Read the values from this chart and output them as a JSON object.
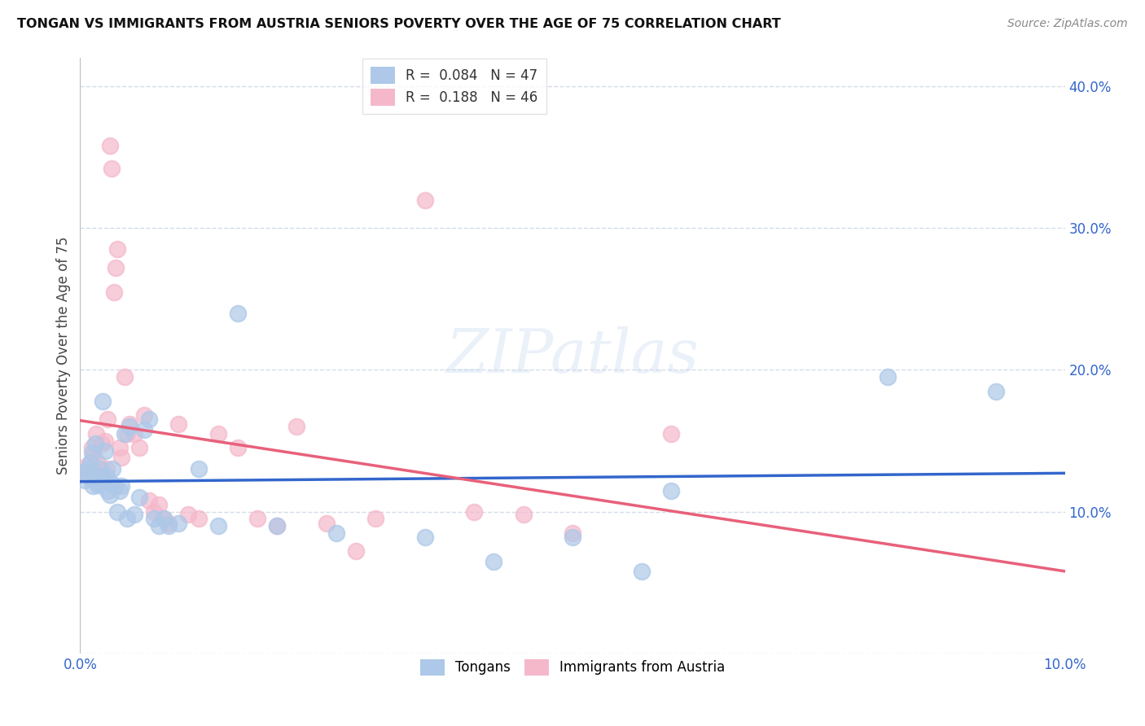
{
  "title": "TONGAN VS IMMIGRANTS FROM AUSTRIA SENIORS POVERTY OVER THE AGE OF 75 CORRELATION CHART",
  "source": "Source: ZipAtlas.com",
  "ylabel": "Seniors Poverty Over the Age of 75",
  "xlim": [
    0.0,
    0.1
  ],
  "ylim": [
    0.0,
    0.42
  ],
  "blue_R": 0.084,
  "blue_N": 47,
  "pink_R": 0.188,
  "pink_N": 46,
  "blue_color": "#adc8e8",
  "pink_color": "#f5b8cb",
  "blue_line_color": "#3366cc",
  "pink_line_color": "#e8607a",
  "grid_color": "#d5dce8",
  "watermark_color": "#c5d8f0",
  "title_color": "#111111",
  "source_color": "#888888",
  "tick_color": "#3366cc",
  "tongans_x": [
    0.0003,
    0.0005,
    0.0008,
    0.001,
    0.0012,
    0.0013,
    0.0015,
    0.0017,
    0.0018,
    0.002,
    0.002,
    0.0022,
    0.0023,
    0.0025,
    0.0027,
    0.0028,
    0.003,
    0.0032,
    0.0033,
    0.0035,
    0.0038,
    0.004,
    0.0042,
    0.0045,
    0.0048,
    0.005,
    0.0055,
    0.006,
    0.0065,
    0.007,
    0.0075,
    0.008,
    0.0085,
    0.009,
    0.01,
    0.012,
    0.014,
    0.016,
    0.02,
    0.026,
    0.035,
    0.042,
    0.05,
    0.057,
    0.06,
    0.082,
    0.093
  ],
  "tongans_y": [
    0.128,
    0.122,
    0.13,
    0.135,
    0.142,
    0.118,
    0.148,
    0.125,
    0.119,
    0.13,
    0.12,
    0.125,
    0.178,
    0.143,
    0.125,
    0.115,
    0.112,
    0.12,
    0.13,
    0.118,
    0.1,
    0.115,
    0.118,
    0.155,
    0.095,
    0.16,
    0.098,
    0.11,
    0.158,
    0.165,
    0.095,
    0.09,
    0.095,
    0.09,
    0.092,
    0.13,
    0.09,
    0.24,
    0.09,
    0.085,
    0.082,
    0.065,
    0.082,
    0.058,
    0.115,
    0.195,
    0.185
  ],
  "austria_x": [
    0.0003,
    0.0006,
    0.0009,
    0.0012,
    0.0014,
    0.0016,
    0.0018,
    0.002,
    0.0022,
    0.0025,
    0.0027,
    0.0028,
    0.003,
    0.0032,
    0.0034,
    0.0036,
    0.0038,
    0.004,
    0.0042,
    0.0045,
    0.0048,
    0.005,
    0.0055,
    0.006,
    0.0065,
    0.007,
    0.0075,
    0.008,
    0.0085,
    0.009,
    0.01,
    0.011,
    0.012,
    0.014,
    0.016,
    0.018,
    0.02,
    0.022,
    0.025,
    0.028,
    0.03,
    0.035,
    0.04,
    0.045,
    0.05,
    0.06
  ],
  "austria_y": [
    0.128,
    0.132,
    0.125,
    0.145,
    0.14,
    0.155,
    0.135,
    0.125,
    0.148,
    0.15,
    0.13,
    0.165,
    0.358,
    0.342,
    0.255,
    0.272,
    0.285,
    0.145,
    0.138,
    0.195,
    0.155,
    0.162,
    0.155,
    0.145,
    0.168,
    0.108,
    0.1,
    0.105,
    0.095,
    0.092,
    0.162,
    0.098,
    0.095,
    0.155,
    0.145,
    0.095,
    0.09,
    0.16,
    0.092,
    0.072,
    0.095,
    0.32,
    0.1,
    0.098,
    0.085,
    0.155
  ]
}
